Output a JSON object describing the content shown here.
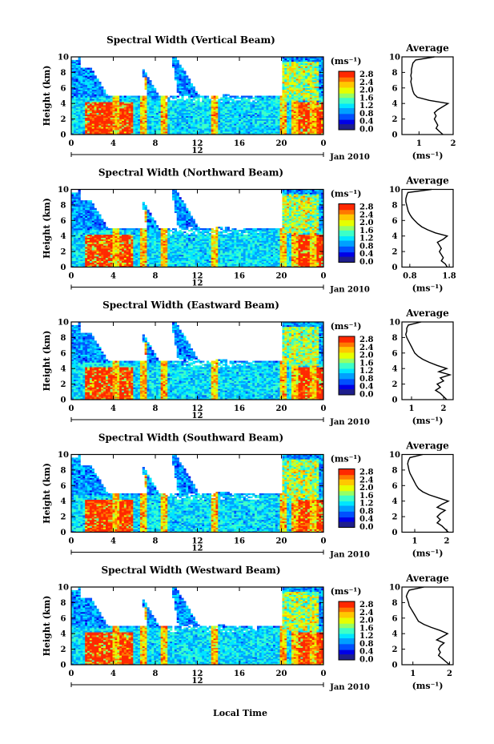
{
  "chart_data": [
    {
      "type": "heatmap",
      "title": "Spectral Width (Vertical Beam)",
      "ylabel": "Height (km)",
      "y_ticks": [
        "0",
        "2",
        "4",
        "6",
        "8",
        "10"
      ],
      "x_ticks": [
        "0",
        "4",
        "8",
        "12",
        "16",
        "20",
        "0"
      ],
      "date_marker": "12",
      "date_label": "Jan 2010",
      "colorbar": {
        "unit": "(ms⁻¹)",
        "ticks": [
          "0.0",
          "0.4",
          "0.8",
          "1.2",
          "1.6",
          "2.0",
          "2.4",
          "2.8"
        ],
        "range": [
          0.0,
          3.0
        ]
      },
      "profile": {
        "title": "Average",
        "xlabel": "(ms⁻¹)",
        "x_ticks": [
          "1",
          "2"
        ],
        "xlim": [
          0.5,
          2.0
        ]
      }
    },
    {
      "type": "heatmap",
      "title": "Spectral Width (Northward Beam)",
      "ylabel": "Height (km)",
      "y_ticks": [
        "0",
        "2",
        "4",
        "6",
        "8",
        "10"
      ],
      "x_ticks": [
        "0",
        "4",
        "8",
        "12",
        "16",
        "20",
        "0"
      ],
      "date_marker": "12",
      "date_label": "Jan 2010",
      "colorbar": {
        "unit": "(ms⁻¹)",
        "ticks": [
          "0.0",
          "0.4",
          "0.8",
          "1.2",
          "1.6",
          "2.0",
          "2.4",
          "2.8"
        ],
        "range": [
          0.0,
          3.0
        ]
      },
      "profile": {
        "title": "Average",
        "xlabel": "(ms⁻¹)",
        "x_ticks": [
          "0.8",
          "1.8"
        ],
        "xlim": [
          0.6,
          1.9
        ]
      }
    },
    {
      "type": "heatmap",
      "title": "Spectral Width (Eastward Beam)",
      "ylabel": "Height (km)",
      "y_ticks": [
        "0",
        "2",
        "4",
        "6",
        "8",
        "10"
      ],
      "x_ticks": [
        "0",
        "4",
        "8",
        "12",
        "16",
        "20",
        "0"
      ],
      "date_marker": "12",
      "date_label": "Jan 2010",
      "colorbar": {
        "unit": "(ms⁻¹)",
        "ticks": [
          "0.0",
          "0.4",
          "0.8",
          "1.2",
          "1.6",
          "2.0",
          "2.4",
          "2.8"
        ],
        "range": [
          0.0,
          3.0
        ]
      },
      "profile": {
        "title": "Average",
        "xlabel": "(ms⁻¹)",
        "x_ticks": [
          "1",
          "2"
        ],
        "xlim": [
          0.7,
          2.3
        ]
      }
    },
    {
      "type": "heatmap",
      "title": "Spectral Width (Southward Beam)",
      "ylabel": "Height (km)",
      "y_ticks": [
        "0",
        "2",
        "4",
        "6",
        "8",
        "10"
      ],
      "x_ticks": [
        "0",
        "4",
        "8",
        "12",
        "16",
        "20",
        "0"
      ],
      "date_marker": "12",
      "date_label": "Jan 2010",
      "colorbar": {
        "unit": "(ms⁻¹)",
        "ticks": [
          "0.0",
          "0.4",
          "0.8",
          "1.2",
          "1.6",
          "2.0",
          "2.4",
          "2.8"
        ],
        "range": [
          0.0,
          3.0
        ]
      },
      "profile": {
        "title": "Average",
        "xlabel": "(ms⁻¹)",
        "x_ticks": [
          "1",
          "2"
        ],
        "xlim": [
          0.6,
          2.2
        ]
      }
    },
    {
      "type": "heatmap",
      "title": "Spectral Width (Westward Beam)",
      "ylabel": "Height (km)",
      "y_ticks": [
        "0",
        "2",
        "4",
        "6",
        "8",
        "10"
      ],
      "x_ticks": [
        "0",
        "4",
        "8",
        "12",
        "16",
        "20",
        "0"
      ],
      "date_marker": "12",
      "date_label": "Jan 2010",
      "xlabel": "Local Time",
      "colorbar": {
        "unit": "(ms⁻¹)",
        "ticks": [
          "0.0",
          "0.4",
          "0.8",
          "1.2",
          "1.6",
          "2.0",
          "2.4",
          "2.8"
        ],
        "range": [
          0.0,
          3.0
        ]
      },
      "profile": {
        "title": "Average",
        "xlabel": "(ms⁻¹)",
        "x_ticks": [
          "1",
          "2"
        ],
        "xlim": [
          0.7,
          2.1
        ]
      }
    }
  ],
  "colormap": [
    "#1e1e8c",
    "#0000e6",
    "#0050ff",
    "#00a0ff",
    "#00e6ff",
    "#3cffc8",
    "#96ff64",
    "#e6ff00",
    "#ffc800",
    "#ff7800",
    "#ff2800"
  ],
  "average_profile_m_per_s": [
    [
      {
        "h": 10.0,
        "v": 1.45
      },
      {
        "h": 9.6,
        "v": 0.9
      },
      {
        "h": 9.2,
        "v": 0.82
      },
      {
        "h": 8.8,
        "v": 0.8
      },
      {
        "h": 8.4,
        "v": 0.78
      },
      {
        "h": 8.0,
        "v": 0.78
      },
      {
        "h": 7.6,
        "v": 0.76
      },
      {
        "h": 7.2,
        "v": 0.78
      },
      {
        "h": 6.8,
        "v": 0.76
      },
      {
        "h": 6.4,
        "v": 0.78
      },
      {
        "h": 6.0,
        "v": 0.8
      },
      {
        "h": 5.6,
        "v": 0.82
      },
      {
        "h": 5.2,
        "v": 0.86
      },
      {
        "h": 4.8,
        "v": 0.95
      },
      {
        "h": 4.4,
        "v": 1.3
      },
      {
        "h": 4.0,
        "v": 1.85
      },
      {
        "h": 3.6,
        "v": 1.7
      },
      {
        "h": 3.2,
        "v": 1.55
      },
      {
        "h": 2.8,
        "v": 1.45
      },
      {
        "h": 2.4,
        "v": 1.5
      },
      {
        "h": 2.0,
        "v": 1.45
      },
      {
        "h": 1.6,
        "v": 1.5
      },
      {
        "h": 1.2,
        "v": 1.55
      },
      {
        "h": 0.8,
        "v": 1.5
      },
      {
        "h": 0.4,
        "v": 1.6
      },
      {
        "h": 0.0,
        "v": 1.7
      }
    ],
    [
      {
        "h": 10.0,
        "v": 1.35
      },
      {
        "h": 9.6,
        "v": 0.75
      },
      {
        "h": 9.2,
        "v": 0.72
      },
      {
        "h": 8.8,
        "v": 0.7
      },
      {
        "h": 8.4,
        "v": 0.7
      },
      {
        "h": 8.0,
        "v": 0.72
      },
      {
        "h": 7.6,
        "v": 0.74
      },
      {
        "h": 7.2,
        "v": 0.76
      },
      {
        "h": 6.8,
        "v": 0.8
      },
      {
        "h": 6.4,
        "v": 0.85
      },
      {
        "h": 6.0,
        "v": 0.92
      },
      {
        "h": 5.6,
        "v": 1.0
      },
      {
        "h": 5.2,
        "v": 1.1
      },
      {
        "h": 4.8,
        "v": 1.25
      },
      {
        "h": 4.4,
        "v": 1.45
      },
      {
        "h": 4.0,
        "v": 1.75
      },
      {
        "h": 3.6,
        "v": 1.65
      },
      {
        "h": 3.2,
        "v": 1.5
      },
      {
        "h": 2.8,
        "v": 1.55
      },
      {
        "h": 2.4,
        "v": 1.6
      },
      {
        "h": 2.0,
        "v": 1.55
      },
      {
        "h": 1.6,
        "v": 1.6
      },
      {
        "h": 1.2,
        "v": 1.65
      },
      {
        "h": 0.8,
        "v": 1.6
      },
      {
        "h": 0.4,
        "v": 1.7
      },
      {
        "h": 0.0,
        "v": 1.75
      }
    ],
    [
      {
        "h": 10.0,
        "v": 1.3
      },
      {
        "h": 9.6,
        "v": 0.9
      },
      {
        "h": 9.2,
        "v": 0.85
      },
      {
        "h": 8.8,
        "v": 0.85
      },
      {
        "h": 8.4,
        "v": 0.82
      },
      {
        "h": 8.0,
        "v": 0.85
      },
      {
        "h": 7.6,
        "v": 0.9
      },
      {
        "h": 7.2,
        "v": 0.95
      },
      {
        "h": 6.8,
        "v": 1.0
      },
      {
        "h": 6.4,
        "v": 1.05
      },
      {
        "h": 6.0,
        "v": 1.1
      },
      {
        "h": 5.6,
        "v": 1.2
      },
      {
        "h": 5.2,
        "v": 1.35
      },
      {
        "h": 4.8,
        "v": 1.55
      },
      {
        "h": 4.4,
        "v": 1.8
      },
      {
        "h": 4.0,
        "v": 2.1
      },
      {
        "h": 3.6,
        "v": 1.85
      },
      {
        "h": 3.2,
        "v": 2.2
      },
      {
        "h": 2.8,
        "v": 1.9
      },
      {
        "h": 2.4,
        "v": 2.0
      },
      {
        "h": 2.0,
        "v": 1.8
      },
      {
        "h": 1.6,
        "v": 1.9
      },
      {
        "h": 1.2,
        "v": 1.75
      },
      {
        "h": 0.8,
        "v": 1.9
      },
      {
        "h": 0.4,
        "v": 2.0
      },
      {
        "h": 0.0,
        "v": 2.1
      }
    ],
    [
      {
        "h": 10.0,
        "v": 1.25
      },
      {
        "h": 9.6,
        "v": 0.85
      },
      {
        "h": 9.2,
        "v": 0.8
      },
      {
        "h": 8.8,
        "v": 0.78
      },
      {
        "h": 8.4,
        "v": 0.8
      },
      {
        "h": 8.0,
        "v": 0.82
      },
      {
        "h": 7.6,
        "v": 0.85
      },
      {
        "h": 7.2,
        "v": 0.9
      },
      {
        "h": 6.8,
        "v": 0.95
      },
      {
        "h": 6.4,
        "v": 1.0
      },
      {
        "h": 6.0,
        "v": 1.05
      },
      {
        "h": 5.6,
        "v": 1.12
      },
      {
        "h": 5.2,
        "v": 1.25
      },
      {
        "h": 4.8,
        "v": 1.45
      },
      {
        "h": 4.4,
        "v": 1.75
      },
      {
        "h": 4.0,
        "v": 2.05
      },
      {
        "h": 3.6,
        "v": 1.85
      },
      {
        "h": 3.2,
        "v": 1.7
      },
      {
        "h": 2.8,
        "v": 1.95
      },
      {
        "h": 2.4,
        "v": 1.8
      },
      {
        "h": 2.0,
        "v": 1.7
      },
      {
        "h": 1.6,
        "v": 1.8
      },
      {
        "h": 1.2,
        "v": 1.7
      },
      {
        "h": 0.8,
        "v": 1.85
      },
      {
        "h": 0.4,
        "v": 1.95
      },
      {
        "h": 0.0,
        "v": 2.05
      }
    ],
    [
      {
        "h": 10.0,
        "v": 1.3
      },
      {
        "h": 9.6,
        "v": 0.9
      },
      {
        "h": 9.2,
        "v": 0.85
      },
      {
        "h": 8.8,
        "v": 0.82
      },
      {
        "h": 8.4,
        "v": 0.85
      },
      {
        "h": 8.0,
        "v": 0.88
      },
      {
        "h": 7.6,
        "v": 0.9
      },
      {
        "h": 7.2,
        "v": 0.95
      },
      {
        "h": 6.8,
        "v": 1.0
      },
      {
        "h": 6.4,
        "v": 1.05
      },
      {
        "h": 6.0,
        "v": 1.1
      },
      {
        "h": 5.6,
        "v": 1.15
      },
      {
        "h": 5.2,
        "v": 1.3
      },
      {
        "h": 4.8,
        "v": 1.5
      },
      {
        "h": 4.4,
        "v": 1.75
      },
      {
        "h": 4.0,
        "v": 1.95
      },
      {
        "h": 3.6,
        "v": 1.8
      },
      {
        "h": 3.2,
        "v": 1.65
      },
      {
        "h": 2.8,
        "v": 1.85
      },
      {
        "h": 2.4,
        "v": 1.75
      },
      {
        "h": 2.0,
        "v": 1.7
      },
      {
        "h": 1.6,
        "v": 1.75
      },
      {
        "h": 1.2,
        "v": 1.7
      },
      {
        "h": 0.8,
        "v": 1.8
      },
      {
        "h": 0.4,
        "v": 1.9
      },
      {
        "h": 0.0,
        "v": 2.0
      }
    ]
  ]
}
